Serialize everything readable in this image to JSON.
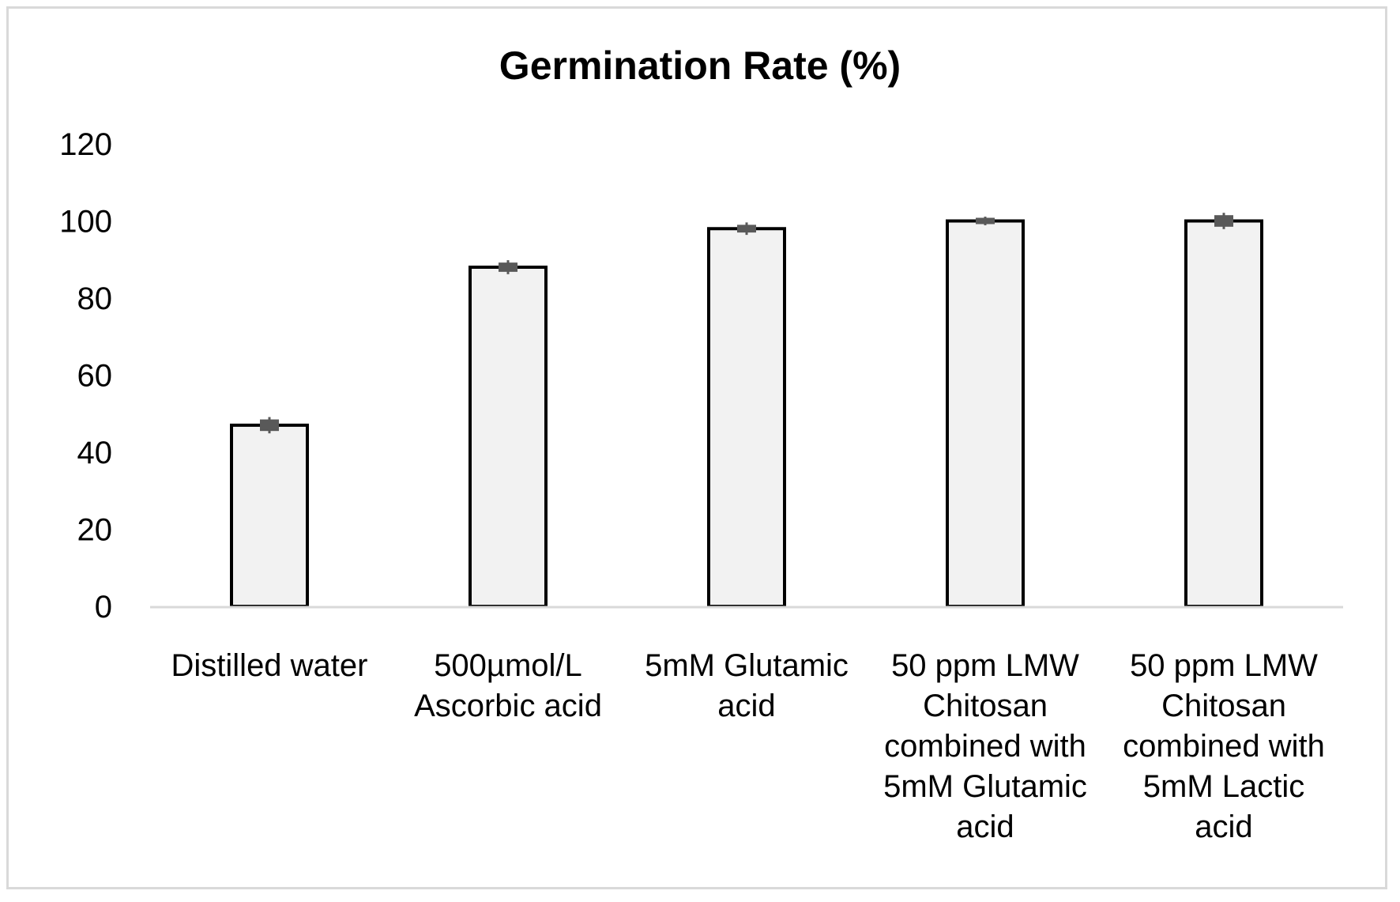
{
  "chart_data": {
    "type": "bar",
    "title": "Germination Rate (%)",
    "xlabel": "",
    "ylabel": "",
    "ylim": [
      0,
      120
    ],
    "yticks": [
      0,
      20,
      40,
      60,
      80,
      100,
      120
    ],
    "grid": false,
    "legend": "none",
    "categories": [
      [
        "Distilled water"
      ],
      [
        "500µmol/L",
        "Ascorbic acid"
      ],
      [
        "5mM Glutamic",
        "acid"
      ],
      [
        "50 ppm LMW",
        "Chitosan",
        "combined with",
        "5mM Glutamic",
        "acid"
      ],
      [
        "50 ppm LMW",
        "Chitosan",
        "combined with",
        "5mM Lactic",
        "acid"
      ]
    ],
    "values": [
      47,
      88,
      98,
      100,
      100
    ],
    "errors": [
      1.5,
      1.2,
      1.0,
      0.5,
      1.5
    ],
    "colors": {
      "bar_fill": "#f2f2f2",
      "bar_stroke": "#000000",
      "error_bar": "#595959",
      "axis": "#d9d9d9"
    }
  }
}
